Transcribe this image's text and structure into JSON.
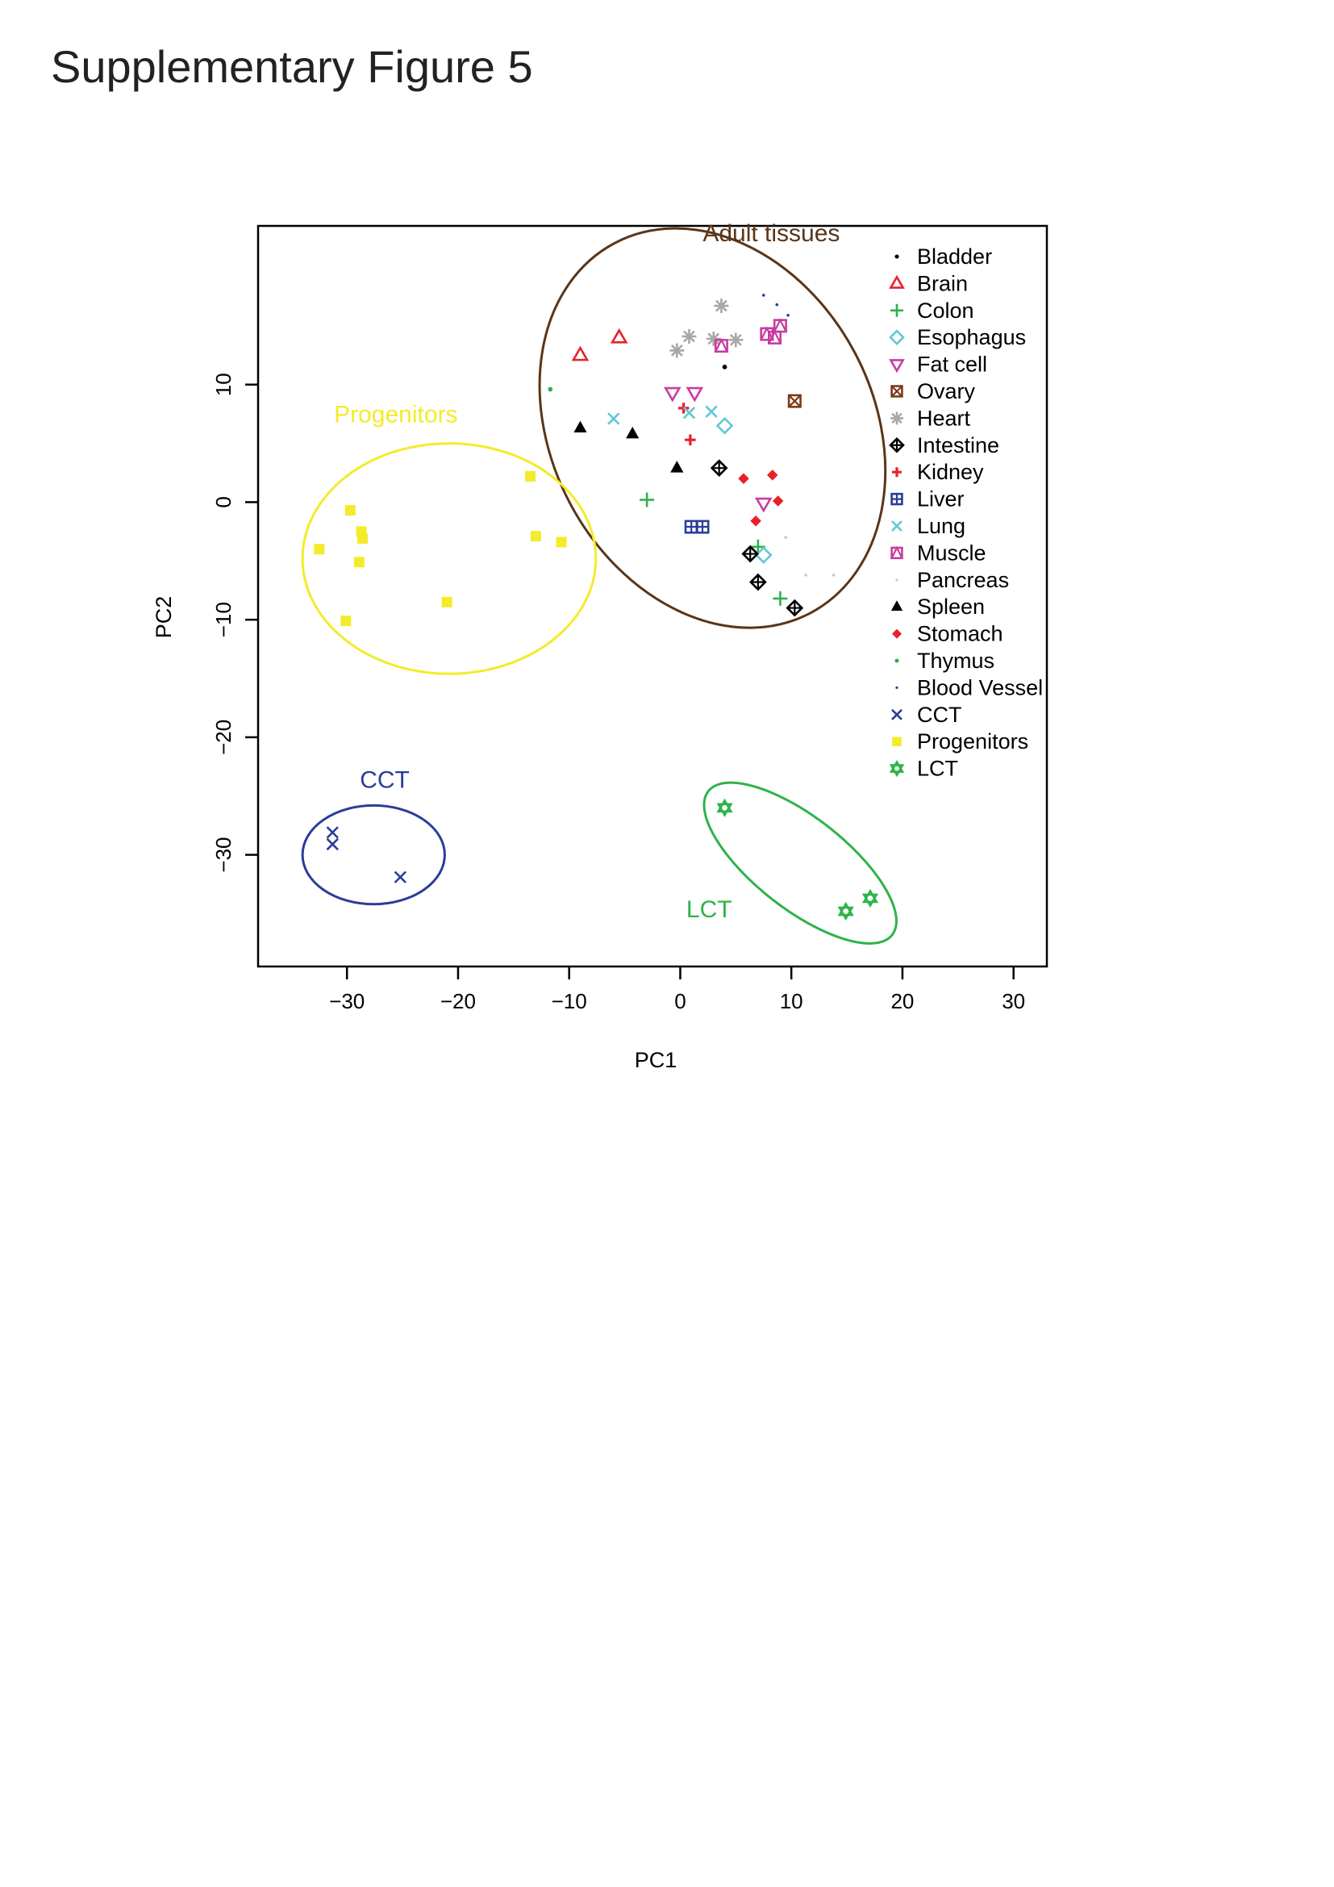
{
  "figure_title": "Supplementary Figure 5",
  "chart_data": {
    "type": "scatter",
    "title": "",
    "xlabel": "PC1",
    "ylabel": "PC2",
    "xlim": [
      -38,
      33
    ],
    "ylim": [
      -39.5,
      23.5
    ],
    "x_ticks": [
      -30,
      -20,
      -10,
      0,
      10,
      20,
      30
    ],
    "y_ticks": [
      -30,
      -20,
      -10,
      0,
      10
    ],
    "grid": false,
    "legend_position": "top-right",
    "series": [
      {
        "name": "Bladder",
        "color": "#000000",
        "marker": "dot",
        "points": [
          [
            4,
            11.5
          ]
        ]
      },
      {
        "name": "Brain",
        "color": "#e8202a",
        "marker": "triangle-open",
        "points": [
          [
            -9,
            12.5
          ],
          [
            -5.5,
            14
          ]
        ]
      },
      {
        "name": "Colon",
        "color": "#2db34a",
        "marker": "plus",
        "points": [
          [
            -3,
            0.2
          ],
          [
            7,
            -3.8
          ],
          [
            9,
            -8.2
          ]
        ]
      },
      {
        "name": "Esophagus",
        "color": "#5fc8d6",
        "marker": "diamond-open",
        "points": [
          [
            4,
            6.5
          ],
          [
            7.5,
            -4.5
          ]
        ]
      },
      {
        "name": "Fat cell",
        "color": "#c83ca0",
        "marker": "triangle-down-open",
        "points": [
          [
            -0.7,
            9.3
          ],
          [
            1.3,
            9.3
          ],
          [
            7.5,
            -0.1
          ]
        ]
      },
      {
        "name": "Ovary",
        "color": "#7a3a1a",
        "marker": "square-x",
        "points": [
          [
            10.3,
            8.6
          ]
        ]
      },
      {
        "name": "Heart",
        "color": "#a8a8a8",
        "marker": "asterisk",
        "points": [
          [
            -0.3,
            12.9
          ],
          [
            0.8,
            14.1
          ],
          [
            3,
            13.9
          ],
          [
            5,
            13.8
          ],
          [
            3.7,
            16.7
          ]
        ]
      },
      {
        "name": "Intestine",
        "color": "#000000",
        "marker": "diamond-plus",
        "points": [
          [
            3.5,
            2.9
          ],
          [
            6.3,
            -4.4
          ],
          [
            7,
            -6.8
          ],
          [
            10.3,
            -9
          ]
        ]
      },
      {
        "name": "Kidney",
        "color": "#e8202a",
        "marker": "cross-small",
        "points": [
          [
            0.3,
            8
          ],
          [
            0.9,
            5.3
          ]
        ]
      },
      {
        "name": "Liver",
        "color": "#2a3d99",
        "marker": "square-plus",
        "points": [
          [
            1,
            -2.1
          ],
          [
            2,
            -2.1
          ]
        ]
      },
      {
        "name": "Lung",
        "color": "#5fc8d6",
        "marker": "x",
        "points": [
          [
            -6,
            7.1
          ],
          [
            0.8,
            7.6
          ],
          [
            2.8,
            7.7
          ]
        ]
      },
      {
        "name": "Muscle",
        "color": "#c83ca0",
        "marker": "square-triangle",
        "points": [
          [
            3.7,
            13.3
          ],
          [
            7.8,
            14.3
          ],
          [
            8.5,
            14
          ],
          [
            9,
            15
          ]
        ]
      },
      {
        "name": "Pancreas",
        "color": "#c8c8c8",
        "marker": "dot-small",
        "points": [
          [
            9.5,
            -3
          ],
          [
            11.3,
            -6.2
          ],
          [
            13.8,
            -6.2
          ]
        ]
      },
      {
        "name": "Spleen",
        "color": "#000000",
        "marker": "triangle-filled",
        "points": [
          [
            -9,
            6.3
          ],
          [
            -4.3,
            5.8
          ],
          [
            -0.3,
            2.9
          ]
        ]
      },
      {
        "name": "Stomach",
        "color": "#e8202a",
        "marker": "diamond-filled",
        "points": [
          [
            5.7,
            2
          ],
          [
            8.3,
            2.3
          ],
          [
            8.8,
            0.1
          ],
          [
            6.8,
            -1.6
          ]
        ]
      },
      {
        "name": "Thymus",
        "color": "#2db34a",
        "marker": "dot",
        "points": [
          [
            -11.7,
            9.6
          ]
        ]
      },
      {
        "name": "Blood Vessel",
        "color": "#2a3d99",
        "marker": "dot-small",
        "points": [
          [
            7.5,
            17.6
          ],
          [
            8.7,
            16.8
          ],
          [
            9.7,
            15.9
          ]
        ]
      },
      {
        "name": "CCT",
        "color": "#2a3d99",
        "marker": "x",
        "points": [
          [
            -31.3,
            -28.1
          ],
          [
            -31.3,
            -29.1
          ],
          [
            -25.2,
            -31.9
          ]
        ]
      },
      {
        "name": "Progenitors",
        "color": "#f2ec2a",
        "marker": "square-filled",
        "points": [
          [
            -32.5,
            -4
          ],
          [
            -29.7,
            -0.7
          ],
          [
            -28.7,
            -2.5
          ],
          [
            -28.6,
            -3.1
          ],
          [
            -28.9,
            -5.1
          ],
          [
            -30.1,
            -10.1
          ],
          [
            -21,
            -8.5
          ],
          [
            -13.5,
            2.2
          ],
          [
            -13,
            -2.9
          ],
          [
            -10.7,
            -3.4
          ]
        ]
      },
      {
        "name": "LCT",
        "color": "#2db34a",
        "marker": "star-of-david",
        "points": [
          [
            4,
            -26
          ],
          [
            14.9,
            -34.8
          ],
          [
            17.1,
            -33.7
          ]
        ]
      }
    ],
    "annotations": [
      {
        "text": "Adult tissues",
        "color": "#5a3518",
        "x": 8.2,
        "y": 22.2
      },
      {
        "text": "Progenitors",
        "color": "#f2ec2a",
        "x": -25.6,
        "y": 6.8
      },
      {
        "text": "CCT",
        "color": "#2a3d99",
        "x": -26.6,
        "y": -24.3
      },
      {
        "text": "LCT",
        "color": "#2db34a",
        "x": 2.6,
        "y": -35.3
      }
    ],
    "ellipses": [
      {
        "group": "Adult tissues",
        "color": "#5a3518",
        "cx": 2.9,
        "cy": 6.3,
        "rx": 14.5,
        "ry": 17.8,
        "rotation_deg": -28
      },
      {
        "group": "Progenitors",
        "color": "#f2ec2a",
        "cx": -20.8,
        "cy": -4.8,
        "rx": 13.2,
        "ry": 9.8,
        "rotation_deg": 0
      },
      {
        "group": "CCT",
        "color": "#2a3d99",
        "cx": -27.6,
        "cy": -30,
        "rx": 6.4,
        "ry": 4.2,
        "rotation_deg": 0
      },
      {
        "group": "LCT",
        "color": "#2db34a",
        "cx": 10.8,
        "cy": -30.7,
        "rx": 10.5,
        "ry": 3.9,
        "rotation_deg": 38
      }
    ]
  }
}
